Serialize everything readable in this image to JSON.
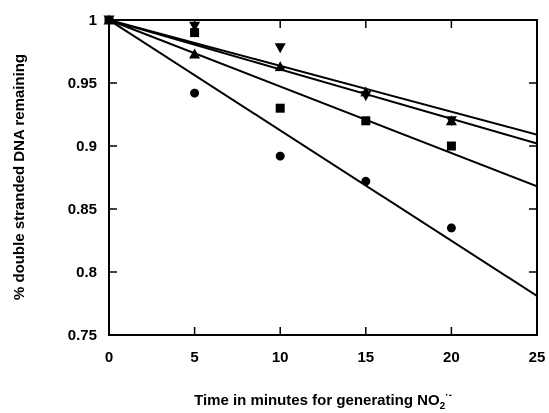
{
  "chart_data": {
    "type": "scatter",
    "xlabel": "Time in minutes for generating NO",
    "xlabel_sub": "2",
    "xlabel_sup": "·-",
    "ylabel": "% double stranded DNA remaining",
    "xlim": [
      0,
      25
    ],
    "ylim": [
      0.75,
      1.0
    ],
    "x_ticks": [
      0,
      5,
      10,
      15,
      20,
      25
    ],
    "y_ticks": [
      0.75,
      0.8,
      0.85,
      0.9,
      0.95,
      1.0
    ],
    "y_tick_labels": [
      "0.75",
      "0.8",
      "0.85",
      "0.9",
      "0.95",
      "1"
    ],
    "grid": false,
    "color": "#000000",
    "series": [
      {
        "marker": "circle",
        "x": [
          0,
          5,
          10,
          15,
          20
        ],
        "y": [
          1.0,
          0.942,
          0.892,
          0.872,
          0.835
        ],
        "fit": [
          1.0,
          0.781
        ]
      },
      {
        "marker": "square",
        "x": [
          0,
          5,
          10,
          15,
          20
        ],
        "y": [
          1.0,
          0.99,
          0.93,
          0.92,
          0.9
        ],
        "fit": [
          1.0,
          0.868
        ]
      },
      {
        "marker": "triangle-up",
        "x": [
          0,
          5,
          10,
          15,
          20
        ],
        "y": [
          1.0,
          0.973,
          0.963,
          0.943,
          0.92
        ],
        "fit": [
          1.0,
          0.902
        ]
      },
      {
        "marker": "triangle-down",
        "x": [
          0,
          5,
          10,
          15,
          20
        ],
        "y": [
          1.0,
          0.995,
          0.978,
          0.94,
          0.92
        ],
        "fit": [
          1.0,
          0.909
        ]
      }
    ]
  }
}
